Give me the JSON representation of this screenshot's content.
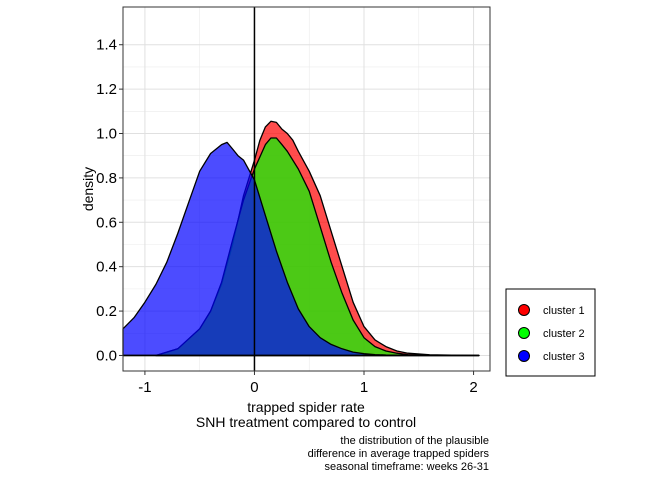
{
  "chart_data": {
    "type": "area",
    "chart_subtype": "density",
    "x_label_line1": "trapped spider rate",
    "x_label_line2": "SNH treatment compared to control",
    "ylabel": "density",
    "xlim": [
      -1.2,
      2.15
    ],
    "ylim": [
      -0.07,
      1.57
    ],
    "x_ticks": [
      -1,
      0,
      1,
      2
    ],
    "x_tick_labels": [
      "-1",
      "0",
      "1",
      "2"
    ],
    "y_ticks": [
      0.0,
      0.2,
      0.4,
      0.6,
      0.8,
      1.0,
      1.2,
      1.4
    ],
    "y_tick_labels": [
      "0.0",
      "0.2",
      "0.4",
      "0.6",
      "0.8",
      "1.0",
      "1.2",
      "1.4"
    ],
    "reference_line_x": 0,
    "grid": true,
    "legend_position": "right-bottom",
    "caption": [
      "the distribution of the plausible",
      "difference in average trapped spiders",
      "seasonal timeframe: weeks 26-31"
    ],
    "series": [
      {
        "name": "cluster 1",
        "color": "#ff0000",
        "x": [
          -0.9,
          -0.7,
          -0.5,
          -0.4,
          -0.3,
          -0.2,
          -0.1,
          0.0,
          0.05,
          0.1,
          0.15,
          0.2,
          0.25,
          0.3,
          0.35,
          0.4,
          0.5,
          0.6,
          0.7,
          0.8,
          0.9,
          1.0,
          1.1,
          1.2,
          1.3,
          1.4,
          1.6,
          1.8,
          2.05
        ],
        "y": [
          0.0,
          0.03,
          0.12,
          0.2,
          0.32,
          0.5,
          0.72,
          0.88,
          0.97,
          1.03,
          1.055,
          1.05,
          1.02,
          1.0,
          0.97,
          0.92,
          0.83,
          0.72,
          0.56,
          0.4,
          0.24,
          0.13,
          0.07,
          0.04,
          0.02,
          0.01,
          0.003,
          0.001,
          0.0
        ]
      },
      {
        "name": "cluster 2",
        "color": "#00ff00",
        "x": [
          -0.9,
          -0.7,
          -0.5,
          -0.4,
          -0.3,
          -0.2,
          -0.1,
          0.0,
          0.1,
          0.15,
          0.2,
          0.25,
          0.3,
          0.4,
          0.5,
          0.6,
          0.7,
          0.8,
          0.9,
          1.0,
          1.1,
          1.2,
          1.3,
          1.4,
          1.6,
          1.8,
          2.05
        ],
        "y": [
          0.0,
          0.03,
          0.12,
          0.2,
          0.33,
          0.52,
          0.7,
          0.84,
          0.95,
          0.98,
          0.98,
          0.95,
          0.92,
          0.84,
          0.74,
          0.58,
          0.42,
          0.28,
          0.16,
          0.08,
          0.04,
          0.02,
          0.01,
          0.004,
          0.001,
          0.0,
          0.0
        ]
      },
      {
        "name": "cluster 3",
        "color": "#0000ff",
        "x": [
          -1.2,
          -1.1,
          -1.0,
          -0.9,
          -0.8,
          -0.7,
          -0.6,
          -0.5,
          -0.4,
          -0.3,
          -0.25,
          -0.2,
          -0.15,
          -0.1,
          0.0,
          0.1,
          0.2,
          0.3,
          0.4,
          0.5,
          0.6,
          0.7,
          0.8,
          0.9,
          1.0,
          1.1,
          1.2,
          1.4,
          1.6,
          2.05
        ],
        "y": [
          0.12,
          0.17,
          0.24,
          0.32,
          0.42,
          0.55,
          0.69,
          0.83,
          0.91,
          0.95,
          0.96,
          0.93,
          0.9,
          0.88,
          0.79,
          0.63,
          0.47,
          0.33,
          0.21,
          0.13,
          0.08,
          0.05,
          0.03,
          0.015,
          0.008,
          0.004,
          0.002,
          0.001,
          0.0,
          0.0
        ]
      }
    ]
  }
}
